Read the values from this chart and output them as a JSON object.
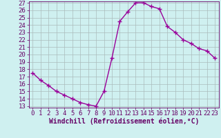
{
  "x": [
    0,
    1,
    2,
    3,
    4,
    5,
    6,
    7,
    8,
    9,
    10,
    11,
    12,
    13,
    14,
    15,
    16,
    17,
    18,
    19,
    20,
    21,
    22,
    23
  ],
  "y": [
    17.5,
    16.5,
    15.8,
    15.0,
    14.5,
    14.0,
    13.5,
    13.2,
    13.0,
    15.0,
    19.5,
    24.5,
    25.8,
    27.0,
    27.0,
    26.5,
    26.2,
    23.8,
    23.0,
    22.0,
    21.5,
    20.8,
    20.5,
    19.5
  ],
  "line_color": "#990099",
  "marker": "+",
  "markersize": 4,
  "linewidth": 1.0,
  "xlabel": "Windchill (Refroidissement éolien,°C)",
  "xlabel_fontsize": 7,
  "ylim": [
    13,
    27
  ],
  "xlim": [
    -0.5,
    23.5
  ],
  "yticks": [
    13,
    14,
    15,
    16,
    17,
    18,
    19,
    20,
    21,
    22,
    23,
    24,
    25,
    26,
    27
  ],
  "xticks": [
    0,
    1,
    2,
    3,
    4,
    5,
    6,
    7,
    8,
    9,
    10,
    11,
    12,
    13,
    14,
    15,
    16,
    17,
    18,
    19,
    20,
    21,
    22,
    23
  ],
  "bg_color": "#cff0f0",
  "grid_color": "#aabbbb",
  "tick_fontsize": 6.5,
  "tick_color": "#660066",
  "spine_color": "#660066",
  "label_color": "#660066"
}
